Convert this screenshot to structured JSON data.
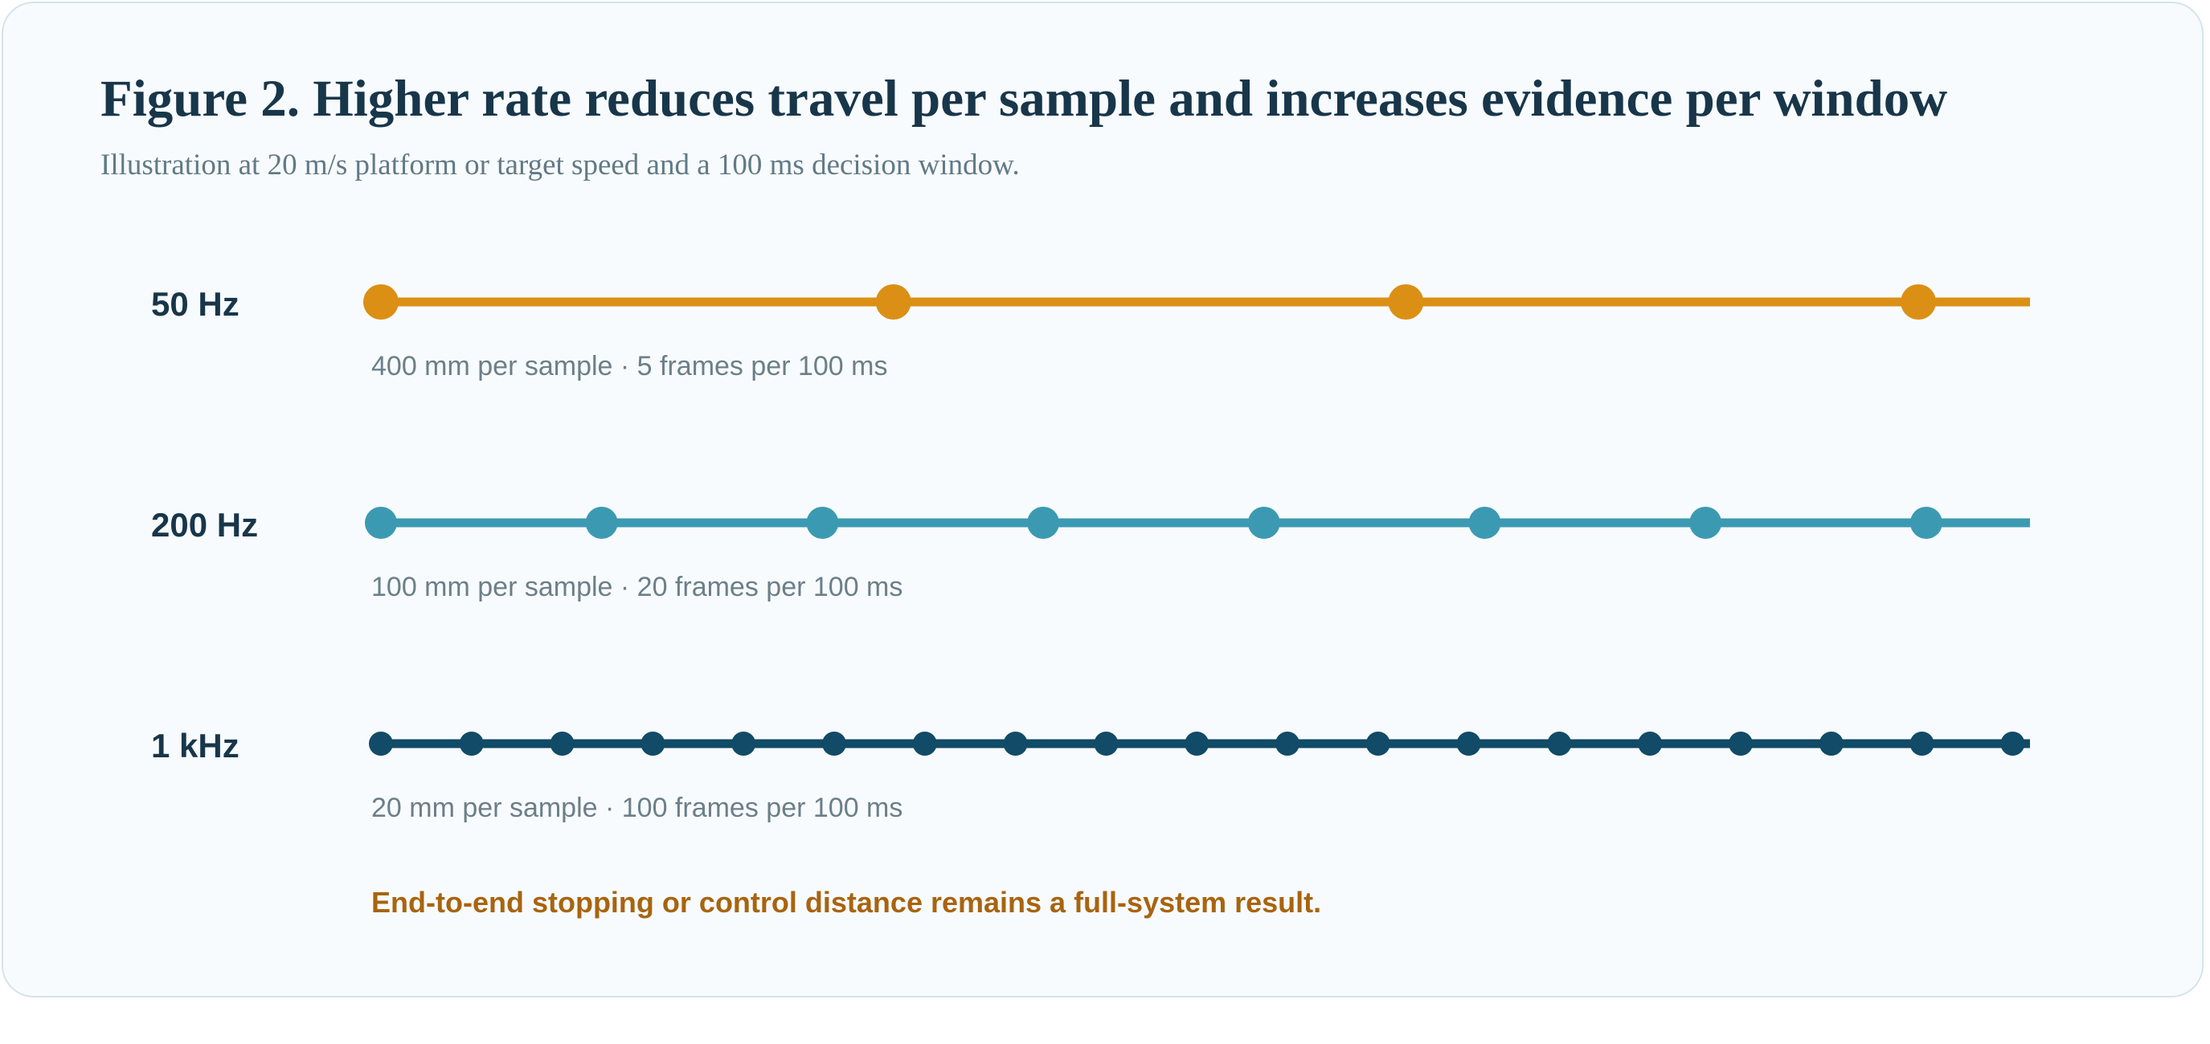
{
  "figure": {
    "title": "Figure 2. Higher rate reduces travel per sample and increases evidence per window",
    "subtitle": "Illustration at 20 m/s platform or target speed and a 100 ms decision window."
  },
  "rows": [
    {
      "label": "50 Hz",
      "caption": "400 mm per sample · 5 frames per 100 ms",
      "color": "#dc8f15",
      "visible_markers": 4
    },
    {
      "label": "200 Hz",
      "caption": "100 mm per sample · 20 frames per 100 ms",
      "color": "#3b9ab2",
      "visible_markers": 8
    },
    {
      "label": "1 kHz",
      "caption": "20 mm per sample · 100 frames per 100 ms",
      "color": "#114b67",
      "visible_markers": 19
    }
  ],
  "footnote": "End-to-end stopping or control distance remains a full-system result."
}
